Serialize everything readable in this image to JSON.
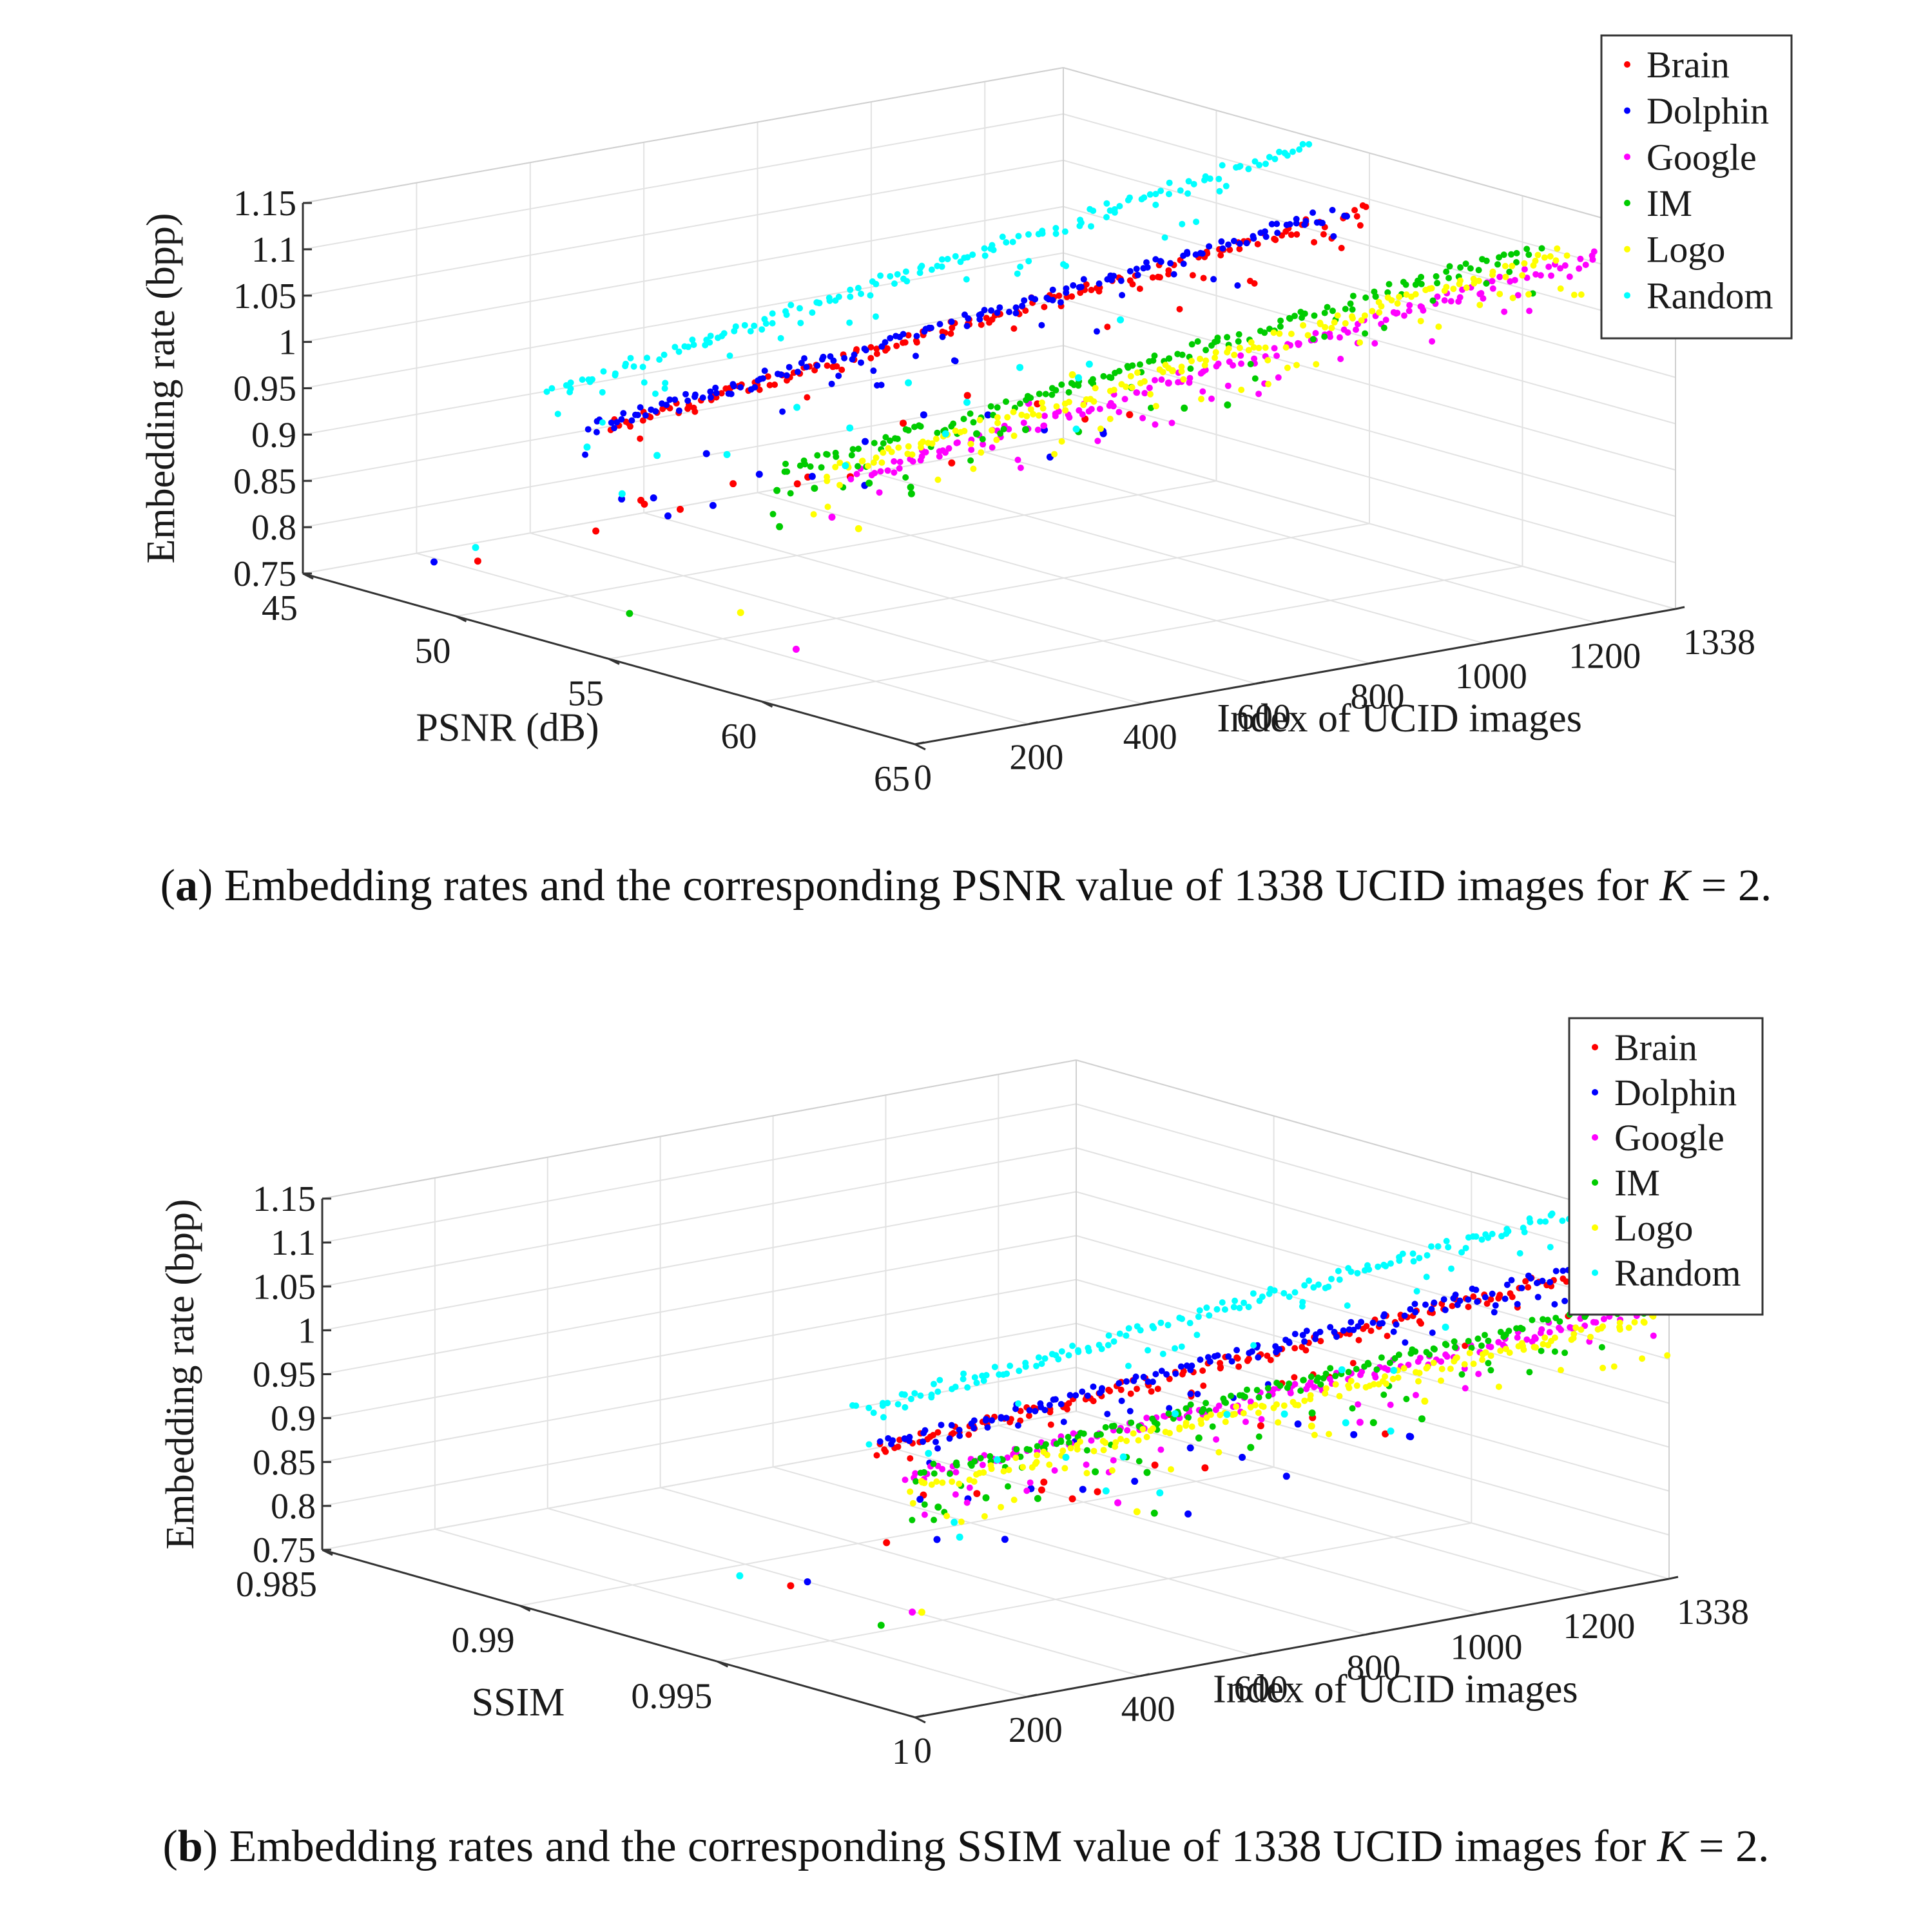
{
  "chart_data": [
    {
      "type": "scatter",
      "projection": "3d",
      "panel_tag": "a",
      "caption": {
        "tag": "a",
        "text_before": ") Embedding rates and the corresponding PSNR value of 1338 UCID images for ",
        "k_symbol": "K",
        "text_after": " = 2."
      },
      "zlabel": "Embedding rate (bpp)",
      "ylabel": "PSNR (dB)",
      "xlabel": "Index of UCID images",
      "zlim": [
        0.75,
        1.15
      ],
      "ylim": [
        45,
        65
      ],
      "xlim": [
        0,
        1338
      ],
      "ztick_labels": [
        "0.75",
        "0.8",
        "0.85",
        "0.9",
        "0.95",
        "1",
        "1.05",
        "1.1",
        "1.15"
      ],
      "ytick_labels": [
        "65",
        "60",
        "55",
        "50",
        "45"
      ],
      "xtick_labels": [
        "0",
        "200",
        "400",
        "600",
        "800",
        "1000",
        "1200",
        "1338"
      ],
      "grid": true,
      "legend_position": "top-right",
      "series": [
        {
          "name": "Brain",
          "color": "#ff0000",
          "main_psnr": 55.0,
          "rate_start": 1.0,
          "rate_end": 1.09,
          "scatter": [
            [
              110,
              54,
              0.9
            ],
            [
              170,
              53,
              0.88
            ],
            [
              260,
              52.5,
              0.86
            ],
            [
              380,
              52,
              0.87
            ],
            [
              520,
              51.5,
              0.85
            ],
            [
              640,
              51,
              0.84
            ],
            [
              760,
              50.5,
              0.88
            ],
            [
              900,
              50,
              0.89
            ],
            [
              1050,
              49.5,
              0.86
            ],
            [
              1150,
              49.2,
              0.83
            ],
            [
              1250,
              48.8,
              0.82
            ],
            [
              300,
              49,
              0.8
            ],
            [
              700,
              48.5,
              0.81
            ],
            [
              200,
              47,
              0.76
            ],
            [
              980,
              48,
              0.79
            ]
          ]
        },
        {
          "name": "Dolphin",
          "color": "#0000ff",
          "main_psnr": 54.2,
          "rate_start": 0.99,
          "rate_end": 1.08,
          "scatter": [
            [
              130,
              53,
              0.89
            ],
            [
              240,
              52,
              0.87
            ],
            [
              360,
              51.5,
              0.9
            ],
            [
              480,
              51,
              0.86
            ],
            [
              600,
              50.5,
              0.84
            ],
            [
              720,
              50,
              0.86
            ],
            [
              850,
              49.5,
              0.87
            ],
            [
              990,
              49,
              0.85
            ],
            [
              1100,
              48.8,
              0.82
            ],
            [
              1220,
              48.5,
              0.8
            ],
            [
              400,
              49.5,
              0.81
            ],
            [
              800,
              48.5,
              0.79
            ],
            [
              150,
              46.5,
              0.76
            ],
            [
              1300,
              47,
              0.78
            ],
            [
              560,
              48,
              0.79
            ],
            [
              1180,
              47.5,
              0.77
            ]
          ]
        },
        {
          "name": "Google",
          "color": "#ff00ff",
          "main_psnr": 63.0,
          "rate_start": 1.02,
          "rate_end": 1.12,
          "scatter": [
            [
              60,
              60,
              0.8
            ],
            [
              900,
              52,
              0.9
            ],
            [
              1200,
              51,
              0.88
            ],
            [
              500,
              53,
              0.83
            ]
          ]
        },
        {
          "name": "IM",
          "color": "#00cc00",
          "main_psnr": 60.5,
          "rate_start": 1.0,
          "rate_end": 1.1,
          "scatter": [
            [
              80,
              59,
              0.96
            ],
            [
              200,
              58,
              0.94
            ],
            [
              350,
              57,
              0.92
            ],
            [
              450,
              56.5,
              0.9
            ],
            [
              620,
              55.5,
              0.93
            ],
            [
              760,
              54.5,
              0.91
            ],
            [
              880,
              54,
              0.89
            ],
            [
              1000,
              53.5,
              0.92
            ],
            [
              1120,
              53,
              0.88
            ],
            [
              300,
              55,
              0.86
            ],
            [
              90,
              54,
              0.78
            ],
            [
              640,
              53,
              0.84
            ],
            [
              1250,
              52,
              0.86
            ]
          ]
        },
        {
          "name": "Logo",
          "color": "#ffff00",
          "main_psnr": 61.8,
          "rate_start": 1.01,
          "rate_end": 1.11,
          "scatter": [
            [
              70,
              58,
              0.82
            ],
            [
              520,
              53.5,
              0.82
            ],
            [
              950,
              52.5,
              0.93
            ],
            [
              1180,
              51.5,
              0.9
            ]
          ]
        },
        {
          "name": "Random",
          "color": "#00ffff",
          "main_psnr": 53.0,
          "rate_start": 1.02,
          "rate_end": 1.14,
          "scatter": [
            [
              150,
              51.5,
              0.93
            ],
            [
              300,
              51,
              0.9
            ],
            [
              450,
              50.5,
              0.88
            ],
            [
              600,
              50,
              0.91
            ],
            [
              720,
              49.5,
              0.87
            ],
            [
              850,
              49,
              0.9
            ],
            [
              980,
              48.5,
              0.86
            ],
            [
              1100,
              48,
              0.88
            ],
            [
              1230,
              47.5,
              0.85
            ],
            [
              1320,
              47.2,
              0.9
            ],
            [
              400,
              48,
              0.82
            ],
            [
              820,
              47.5,
              0.8
            ],
            [
              1280,
              46.5,
              0.78
            ],
            [
              250,
              46,
              0.76
            ],
            [
              1050,
              46.5,
              0.8
            ],
            [
              1330,
              46,
              0.84
            ]
          ]
        }
      ]
    },
    {
      "type": "scatter",
      "projection": "3d",
      "panel_tag": "b",
      "caption": {
        "tag": "b",
        "text_before": ") Embedding rates and the corresponding SSIM value of 1338 UCID images for ",
        "k_symbol": "K",
        "text_after": " = 2."
      },
      "zlabel": "Embedding rate (bpp)",
      "ylabel": "SSIM",
      "xlabel": "Index of UCID images",
      "zlim": [
        0.75,
        1.15
      ],
      "ylim": [
        0.985,
        1.0
      ],
      "xlim": [
        0,
        1338
      ],
      "ztick_labels": [
        "0.75",
        "0.8",
        "0.85",
        "0.9",
        "0.95",
        "1",
        "1.05",
        "1.1",
        "1.15"
      ],
      "ytick_labels": [
        "1",
        "0.995",
        "0.99",
        "0.985"
      ],
      "xtick_labels": [
        "0",
        "200",
        "400",
        "600",
        "800",
        "1000",
        "1200",
        "1338"
      ],
      "grid": true,
      "legend_position": "top-right",
      "series": [
        {
          "name": "Brain",
          "color": "#ff0000",
          "main_ssim": 0.999,
          "rate_start": 1.04,
          "rate_end": 1.1,
          "scatter": [
            [
              120,
              0.9985,
              0.97
            ],
            [
              250,
              0.998,
              0.95
            ],
            [
              400,
              0.9975,
              0.93
            ],
            [
              520,
              0.9972,
              0.91
            ],
            [
              650,
              0.9968,
              0.92
            ],
            [
              760,
              0.9965,
              0.9
            ],
            [
              880,
              0.9962,
              0.93
            ],
            [
              1000,
              0.9958,
              0.92
            ],
            [
              1150,
              0.9955,
              0.88
            ],
            [
              300,
              0.995,
              0.85
            ],
            [
              200,
              0.994,
              0.8
            ],
            [
              700,
              0.994,
              0.84
            ],
            [
              1000,
              0.989,
              0.76
            ]
          ]
        },
        {
          "name": "Dolphin",
          "color": "#0000ff",
          "main_ssim": 0.9992,
          "rate_start": 1.05,
          "rate_end": 1.11,
          "scatter": [
            [
              100,
              0.9987,
              0.97
            ],
            [
              220,
              0.9982,
              0.95
            ],
            [
              360,
              0.9978,
              0.94
            ],
            [
              480,
              0.9974,
              0.92
            ],
            [
              600,
              0.997,
              0.91
            ],
            [
              720,
              0.9967,
              0.93
            ],
            [
              840,
              0.9963,
              0.9
            ],
            [
              960,
              0.996,
              0.92
            ],
            [
              1080,
              0.9957,
              0.89
            ],
            [
              1200,
              0.9954,
              0.87
            ],
            [
              440,
              0.996,
              0.85
            ],
            [
              800,
              0.9955,
              0.83
            ],
            [
              300,
              0.993,
              0.78
            ],
            [
              1150,
              0.993,
              0.8
            ],
            [
              600,
              0.992,
              0.78
            ],
            [
              1300,
              0.994,
              0.84
            ]
          ]
        },
        {
          "name": "Google",
          "color": "#ff00ff",
          "main_ssim": 0.9998,
          "rate_start": 1.02,
          "rate_end": 1.06,
          "scatter": [
            [
              30,
              0.9995,
              0.86
            ],
            [
              500,
              0.998,
              0.91
            ],
            [
              1000,
              0.997,
              0.93
            ]
          ]
        },
        {
          "name": "IM",
          "color": "#00cc00",
          "main_ssim": 0.9998,
          "rate_start": 1.02,
          "rate_end": 1.07,
          "scatter": [
            [
              90,
              0.9993,
              0.97
            ],
            [
              210,
              0.9988,
              0.96
            ],
            [
              330,
              0.9984,
              0.94
            ],
            [
              460,
              0.998,
              0.95
            ],
            [
              580,
              0.9976,
              0.93
            ],
            [
              700,
              0.9972,
              0.95
            ],
            [
              820,
              0.9968,
              0.92
            ],
            [
              950,
              0.9965,
              0.94
            ],
            [
              1080,
              0.9962,
              0.91
            ],
            [
              80,
              0.998,
              0.82
            ],
            [
              600,
              0.9975,
              0.88
            ],
            [
              1180,
              0.996,
              0.9
            ]
          ]
        },
        {
          "name": "Logo",
          "color": "#ffff00",
          "main_ssim": 0.9999,
          "rate_start": 1.01,
          "rate_end": 1.05,
          "scatter": [
            [
              40,
              0.9996,
              0.86
            ],
            [
              520,
              0.9982,
              0.9
            ],
            [
              900,
              0.9972,
              0.94
            ],
            [
              1150,
              0.9965,
              0.93
            ]
          ]
        },
        {
          "name": "Random",
          "color": "#00ffff",
          "main_ssim": 0.9985,
          "rate_start": 1.08,
          "rate_end": 1.16,
          "scatter": [
            [
              150,
              0.9982,
              1.01
            ],
            [
              300,
              0.9978,
              0.98
            ],
            [
              450,
              0.9974,
              0.96
            ],
            [
              580,
              0.997,
              0.94
            ],
            [
              700,
              0.9966,
              0.97
            ],
            [
              820,
              0.9962,
              0.95
            ],
            [
              950,
              0.9958,
              0.93
            ],
            [
              1080,
              0.9954,
              0.96
            ],
            [
              1200,
              0.995,
              0.94
            ],
            [
              1320,
              0.9946,
              0.97
            ],
            [
              350,
              0.996,
              0.88
            ],
            [
              750,
              0.9955,
              0.86
            ],
            [
              1150,
              0.9945,
              0.88
            ],
            [
              500,
              0.994,
              0.82
            ],
            [
              1300,
              0.9935,
              0.84
            ],
            [
              250,
              0.992,
              0.78
            ],
            [
              900,
              0.992,
              0.8
            ]
          ]
        }
      ]
    }
  ]
}
